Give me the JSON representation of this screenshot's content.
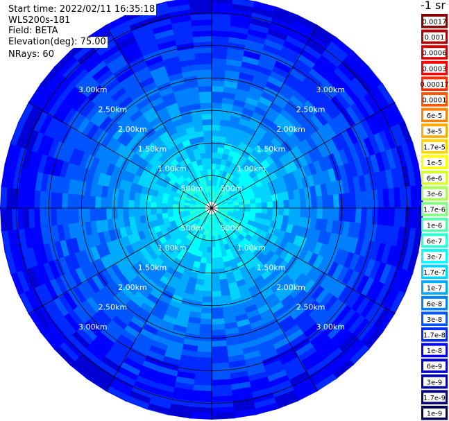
{
  "header": {
    "start_time": "Start time: 2022/02/11 16:35:18",
    "instrument": "WLS200s-181",
    "field": "Field: BETA",
    "elevation": "Elevation(deg): 75.00",
    "nrays": "NRays: 60"
  },
  "chart_data": {
    "type": "heatmap",
    "projection": "polar",
    "title": "",
    "n_rays": 60,
    "range_ring_labels": [
      "500m",
      "1.00km",
      "1.50km",
      "2.00km",
      "2.50km",
      "3.00km"
    ],
    "range_rings_km": [
      0.5,
      1.0,
      1.5,
      2.0,
      2.5,
      3.0
    ],
    "max_range_km": 3.25,
    "spoke_angles_deg": [
      0,
      30,
      60,
      90,
      120,
      150,
      180,
      210,
      240,
      270,
      300,
      330
    ],
    "typical_values_by_range_km": [
      {
        "range_km": 0.5,
        "value": "1.7e-7"
      },
      {
        "range_km": 1.0,
        "value": "1e-7"
      },
      {
        "range_km": 1.5,
        "value": "6e-8"
      },
      {
        "range_km": 2.0,
        "value": "3e-8"
      },
      {
        "range_km": 2.5,
        "value": "1.7e-8"
      },
      {
        "range_km": 3.0,
        "value": "1e-8"
      }
    ],
    "colorbar": {
      "title": "-1 sr",
      "labels": [
        "0.0017",
        "0.001",
        "0.0006",
        "0.0003",
        "0.00017",
        "0.0001",
        "6e-5",
        "3e-5",
        "1.7e-5",
        "1e-5",
        "6e-6",
        "3e-6",
        "1.7e-6",
        "1e-6",
        "6e-7",
        "3e-7",
        "1.7e-7",
        "1e-7",
        "6e-8",
        "3e-8",
        "1.7e-8",
        "1e-8",
        "6e-9",
        "3e-9",
        "1.7e-9",
        "1e-9"
      ],
      "colors": [
        "#8b0000",
        "#b00000",
        "#d80000",
        "#ff0000",
        "#ff2a00",
        "#ff5500",
        "#ff8000",
        "#ffaa00",
        "#ffd400",
        "#ffff00",
        "#d4ff2a",
        "#aaff55",
        "#80ff80",
        "#55ffaa",
        "#2affd4",
        "#00ffff",
        "#00d4ff",
        "#00aaff",
        "#0080ff",
        "#0055ff",
        "#002aff",
        "#0000ff",
        "#0000d4",
        "#0000aa",
        "#000080",
        "#000055"
      ]
    }
  }
}
